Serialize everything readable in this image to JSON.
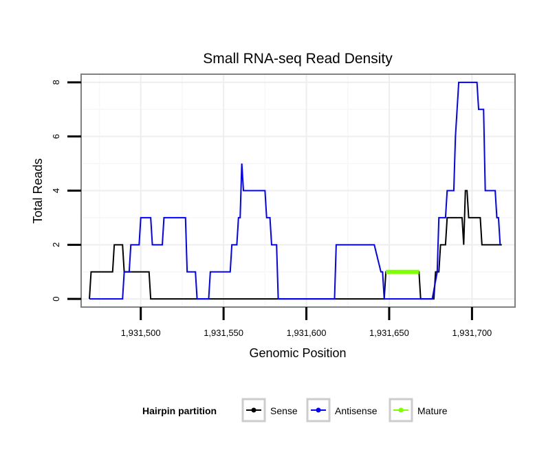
{
  "chart_data": {
    "type": "line",
    "title": "Small RNA-seq Read Density",
    "xlabel": "Genomic Position",
    "ylabel": "Total Reads",
    "xlim": [
      1931464,
      1931726
    ],
    "ylim": [
      -0.3,
      8.3
    ],
    "xticks": [
      1931500,
      1931550,
      1931600,
      1931650,
      1931700
    ],
    "xtick_labels": [
      "1,931,500",
      "1,931,550",
      "1,931,600",
      "1,931,650",
      "1,931,700"
    ],
    "yticks": [
      0,
      2,
      4,
      6,
      8
    ],
    "ytick_labels": [
      "0",
      "2",
      "4",
      "6",
      "8"
    ],
    "grid": true,
    "legend": {
      "title": "Hairpin partition",
      "position": "bottom",
      "entries": [
        "Sense",
        "Antisense",
        "Mature"
      ]
    },
    "series": [
      {
        "name": "Sense",
        "color": "#000000",
        "width": 2,
        "x": [
          1931469,
          1931470,
          1931483,
          1931484,
          1931489,
          1931490,
          1931505,
          1931506,
          1931647,
          1931648,
          1931668,
          1931669,
          1931677,
          1931678,
          1931680,
          1931681,
          1931684,
          1931685,
          1931694,
          1931695,
          1931696,
          1931697,
          1931698,
          1931699,
          1931705,
          1931706,
          1931718
        ],
        "y": [
          0,
          1,
          1,
          2,
          2,
          1,
          1,
          0,
          0,
          1,
          1,
          0,
          0,
          1,
          1,
          2,
          2,
          3,
          3,
          2,
          4,
          4,
          3,
          3,
          3,
          2,
          2
        ]
      },
      {
        "name": "Antisense",
        "color": "#0000ff",
        "width": 2,
        "x": [
          1931469,
          1931489,
          1931490,
          1931493,
          1931494,
          1931499,
          1931500,
          1931506,
          1931507,
          1931513,
          1931514,
          1931515,
          1931516,
          1931527,
          1931528,
          1931533,
          1931534,
          1931541,
          1931542,
          1931554,
          1931555,
          1931558,
          1931559,
          1931560,
          1931561,
          1931562,
          1931563,
          1931564,
          1931575,
          1931576,
          1931578,
          1931579,
          1931582,
          1931583,
          1931617,
          1931618,
          1931640,
          1931641,
          1931645,
          1931646,
          1931647,
          1931648,
          1931675,
          1931676,
          1931679,
          1931680,
          1931684,
          1931685,
          1931689,
          1931690,
          1931692,
          1931693,
          1931703,
          1931704,
          1931707,
          1931708,
          1931714,
          1931715,
          1931716,
          1931717
        ],
        "y": [
          0,
          0,
          1,
          1,
          2,
          2,
          3,
          3,
          2,
          2,
          3,
          3,
          3,
          3,
          1,
          1,
          0,
          0,
          1,
          1,
          2,
          2,
          3,
          3,
          5,
          4,
          4,
          4,
          4,
          3,
          3,
          2,
          2,
          0,
          0,
          2,
          2,
          2,
          1,
          1,
          0,
          0,
          0,
          0,
          1,
          3,
          3,
          4,
          4,
          6,
          8,
          8,
          8,
          7,
          7,
          4,
          4,
          3,
          3,
          2
        ]
      },
      {
        "name": "Mature",
        "color": "#7fff00",
        "width": 6,
        "x": [
          1931648,
          1931668
        ],
        "y": [
          1,
          1
        ]
      }
    ]
  }
}
